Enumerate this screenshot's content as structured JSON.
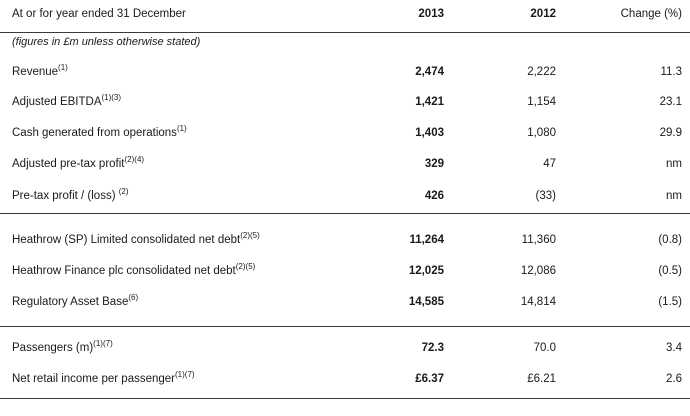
{
  "header": {
    "label": "At or for year ended 31 December",
    "col_2013": "2013",
    "col_2012": "2012",
    "col_change": "Change (%)"
  },
  "note": "(figures in £m unless otherwise stated)",
  "groups": [
    [
      {
        "label": "Revenue",
        "sup": "(1)",
        "v2013": "2,474",
        "v2012": "2,222",
        "change": "11.3"
      },
      {
        "label": "Adjusted EBITDA",
        "sup": "(1)(3)",
        "v2013": "1,421",
        "v2012": "1,154",
        "change": "23.1"
      },
      {
        "label": "Cash generated from operations",
        "sup": "(1)",
        "v2013": "1,403",
        "v2012": "1,080",
        "change": "29.9"
      },
      {
        "label": "Adjusted pre-tax profit",
        "sup": "(2)(4)",
        "v2013": "329",
        "v2012": "47",
        "change": "nm"
      },
      {
        "label": "Pre-tax profit / (loss) ",
        "sup": "(2)",
        "v2013": "426",
        "v2012": "(33)",
        "change": "nm"
      }
    ],
    [
      {
        "label": "Heathrow (SP) Limited consolidated net debt",
        "sup": "(2)(5)",
        "v2013": "11,264",
        "v2012": "11,360",
        "change": "(0.8)"
      },
      {
        "label": "Heathrow Finance plc consolidated net debt",
        "sup": "(2)(5)",
        "v2013": "12,025",
        "v2012": "12,086",
        "change": "(0.5)"
      },
      {
        "label": "Regulatory Asset Base",
        "sup": "(6)",
        "v2013": "14,585",
        "v2012": "14,814",
        "change": "(1.5)"
      }
    ],
    [
      {
        "label": "Passengers (m)",
        "sup": "(1)(7)",
        "v2013": "72.3",
        "v2012": "70.0",
        "change": "3.4"
      },
      {
        "label": "Net retail income per passenger",
        "sup": "(1)(7)",
        "v2013": "£6.37",
        "v2012": "£6.21",
        "change": "2.6"
      }
    ]
  ]
}
